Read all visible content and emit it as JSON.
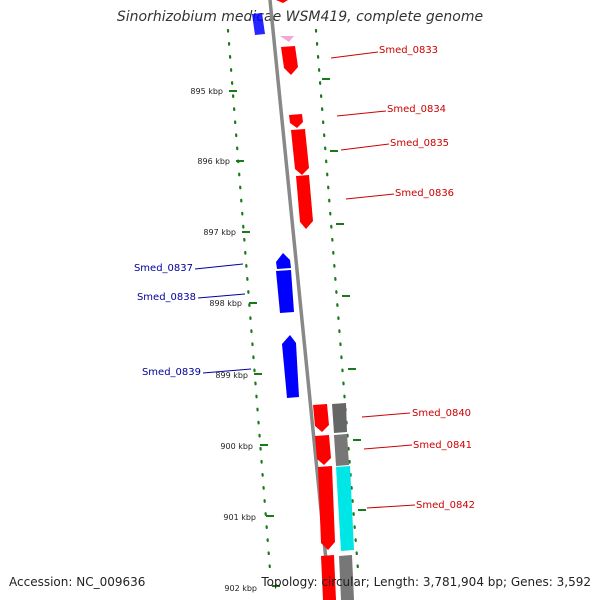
{
  "title": "Sinorhizobium medicae WSM419, complete genome",
  "accession": "Accession: NC_009636",
  "summary": "Topology: circular; Length: 3,781,904 bp; Genes: 3,592",
  "colors": {
    "forward": "#ff0000",
    "reverse": "#0000ff",
    "other_feature": "#666666",
    "cyan_feature": "#00e5e5",
    "ruler": "#1a7a1a",
    "backbone": "#888888"
  },
  "ticks": [
    "895 kbp",
    "896 kbp",
    "897 kbp",
    "898 kbp",
    "899 kbp",
    "900 kbp",
    "901 kbp",
    "902 kbp"
  ],
  "genes": {
    "forward": [
      "Smed_0833",
      "Smed_0834",
      "Smed_0835",
      "Smed_0836",
      "Smed_0840",
      "Smed_0841",
      "Smed_0842"
    ],
    "reverse": [
      "Smed_0837",
      "Smed_0838",
      "Smed_0839"
    ]
  }
}
